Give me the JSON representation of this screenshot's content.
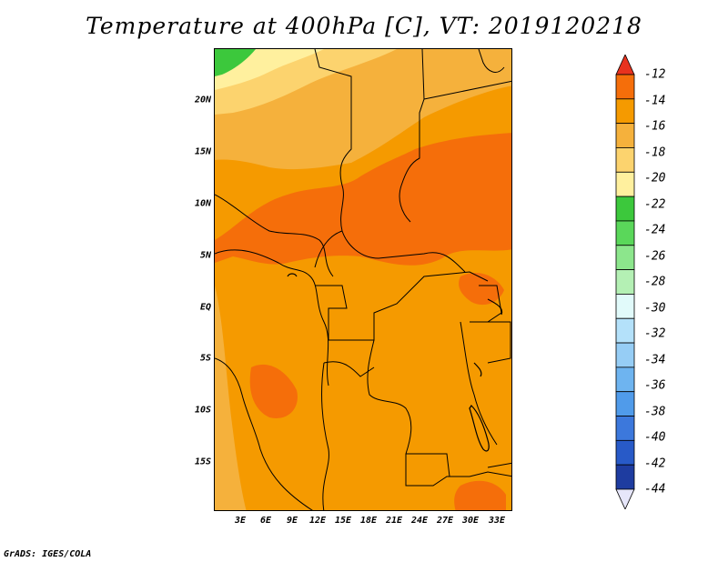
{
  "title": "Temperature at 400hPa [C], VT: 2019120218",
  "footer": "GrADS: IGES/COLA",
  "axes": {
    "lat_labels": [
      "20N",
      "15N",
      "10N",
      "5N",
      "EQ",
      "5S",
      "10S",
      "15S"
    ],
    "lon_labels": [
      "3E",
      "6E",
      "9E",
      "12E",
      "15E",
      "18E",
      "21E",
      "24E",
      "27E",
      "30E",
      "33E"
    ]
  },
  "colorbar": {
    "labels": [
      "-12",
      "-14",
      "-16",
      "-18",
      "-20",
      "-22",
      "-24",
      "-26",
      "-28",
      "-30",
      "-32",
      "-34",
      "-36",
      "-38",
      "-40",
      "-42",
      "-44"
    ],
    "colors": [
      "#e8321e",
      "#f56e0a",
      "#f59a00",
      "#f5b13c",
      "#fcd36e",
      "#fff09e",
      "#3cc83c",
      "#5ad75a",
      "#8ce68c",
      "#b4f0b4",
      "#e1fafa",
      "#b4e1fa",
      "#96cdf5",
      "#6eb4f0",
      "#509bea",
      "#3c78dc",
      "#285ac8",
      "#1e3ca0",
      "#0a1e78"
    ],
    "low_end_color": "#e6e6fa",
    "units": "C"
  },
  "map": {
    "region": "Central Africa",
    "lat_range": [
      -20,
      24
    ],
    "lon_range": [
      0,
      35
    ],
    "background_color": "#f59a00",
    "warm_core_color": "#f56e0a",
    "cool_color": "#f5b13c",
    "coolest_color": "#fcd36e",
    "green_patch_color": "#3cc83c"
  }
}
